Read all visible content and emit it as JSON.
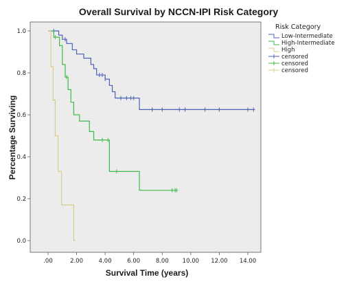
{
  "chart_data": {
    "type": "line",
    "title": "Overall Survival by NCCN-IPI Risk Category",
    "xlabel": "Survival Time (years)",
    "ylabel": "Percentage Surviving",
    "xlim": [
      0,
      15
    ],
    "ylim": [
      0,
      1.0
    ],
    "x_ticks": [
      ".00",
      "2.00",
      "4.00",
      "6.00",
      "8.00",
      "10.00",
      "12.00",
      "14.00"
    ],
    "x_tick_values": [
      0,
      2,
      4,
      6,
      8,
      10,
      12,
      14
    ],
    "y_ticks": [
      "0.0",
      "0.2",
      "0.4",
      "0.6",
      "0.8",
      "1.0"
    ],
    "y_tick_values": [
      0,
      0.2,
      0.4,
      0.6,
      0.8,
      1.0
    ],
    "grid": false,
    "plot_background": "#ececec",
    "legend_title": "Risk Category",
    "legend_position": "right",
    "series": [
      {
        "name": "Low-Intermediate",
        "color": "#4a5fb5",
        "steps": [
          [
            0,
            1.0
          ],
          [
            0.75,
            0.98
          ],
          [
            1.0,
            0.96
          ],
          [
            1.3,
            0.94
          ],
          [
            1.7,
            0.91
          ],
          [
            2.0,
            0.89
          ],
          [
            2.5,
            0.87
          ],
          [
            3.0,
            0.84
          ],
          [
            3.2,
            0.82
          ],
          [
            3.4,
            0.79
          ],
          [
            4.0,
            0.77
          ],
          [
            4.3,
            0.74
          ],
          [
            4.5,
            0.71
          ],
          [
            4.7,
            0.68
          ],
          [
            6.4,
            0.625
          ],
          [
            14.5,
            0.625
          ]
        ],
        "censor_x": [
          0.4,
          1.2,
          3.6,
          3.8,
          4.0,
          5.1,
          5.5,
          5.8,
          6.0,
          7.3,
          8.0,
          9.2,
          9.6,
          11.0,
          12.0,
          14.0,
          14.4
        ]
      },
      {
        "name": "High-Intermediate",
        "color": "#3fb84a",
        "steps": [
          [
            0,
            1.0
          ],
          [
            0.4,
            0.97
          ],
          [
            0.8,
            0.93
          ],
          [
            1.0,
            0.84
          ],
          [
            1.2,
            0.78
          ],
          [
            1.4,
            0.72
          ],
          [
            1.6,
            0.66
          ],
          [
            1.8,
            0.6
          ],
          [
            2.2,
            0.57
          ],
          [
            2.9,
            0.52
          ],
          [
            3.2,
            0.48
          ],
          [
            4.3,
            0.33
          ],
          [
            6.4,
            0.24
          ],
          [
            9.1,
            0.24
          ]
        ],
        "censor_x": [
          0.5,
          1.3,
          3.8,
          4.2,
          4.8,
          8.7,
          8.9,
          9.0
        ]
      },
      {
        "name": "High",
        "color": "#d8cc88",
        "steps": [
          [
            0,
            1.0
          ],
          [
            0.2,
            0.83
          ],
          [
            0.35,
            0.67
          ],
          [
            0.5,
            0.5
          ],
          [
            0.7,
            0.33
          ],
          [
            0.95,
            0.17
          ],
          [
            1.8,
            0.0
          ],
          [
            1.9,
            0.0
          ]
        ],
        "censor_x": []
      }
    ],
    "legend_entries": [
      {
        "label": "Low-Intermediate",
        "color": "#4a5fb5",
        "kind": "line"
      },
      {
        "label": "High-Intermediate",
        "color": "#3fb84a",
        "kind": "line"
      },
      {
        "label": "High",
        "color": "#d8cc88",
        "kind": "line"
      },
      {
        "label": "censored",
        "color": "#4a5fb5",
        "kind": "censor"
      },
      {
        "label": "censored",
        "color": "#3fb84a",
        "kind": "censor"
      },
      {
        "label": "censored",
        "color": "#d8cc88",
        "kind": "censor"
      }
    ]
  }
}
